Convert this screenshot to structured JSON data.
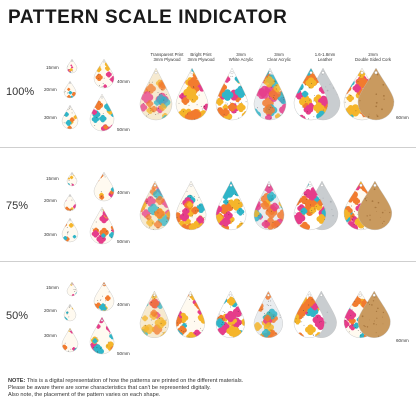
{
  "title": "PATTERN SCALE INDICATOR",
  "materials": [
    {
      "line1": "Transparent Print",
      "line2": "3mm Plywood"
    },
    {
      "line1": "Bright Print",
      "line2": "3mm Plywood"
    },
    {
      "line1": "3mm",
      "line2": "White Acrylic"
    },
    {
      "line1": "3mm",
      "line2": "Clear Acrylic"
    },
    {
      "line1": "1.6-1.8mm",
      "line2": "Leather"
    },
    {
      "line1": "2mm",
      "line2": "Double Sided Cork"
    }
  ],
  "sizes": {
    "small": "15mm",
    "medium": "20mm",
    "large": "30mm",
    "xl": "40mm",
    "xxl": "50mm",
    "row_height": "60mm"
  },
  "scales": [
    "100%",
    "75%",
    "50%"
  ],
  "note": {
    "label": "NOTE:",
    "line1": " This is a digital representation of how the patterns are printed on the different materials.",
    "line2": "Please be aware there are some characteristics that can't be represented digitally.",
    "line3": "Also note, the placement of the pattern varies on each shape."
  },
  "colors": {
    "background": "#ffffff",
    "pattern": [
      "#e63d8a",
      "#f5b52a",
      "#2fb5c8",
      "#f27b2e",
      "#f7e08a",
      "#ffffff"
    ],
    "plywood_light": "#f6ead0",
    "white_acrylic": "#ffffff",
    "clear_acrylic": "#e9ecef",
    "leather": "#c9cdd0",
    "cork": "#c99a5f",
    "divider": "#cfcfcf"
  }
}
